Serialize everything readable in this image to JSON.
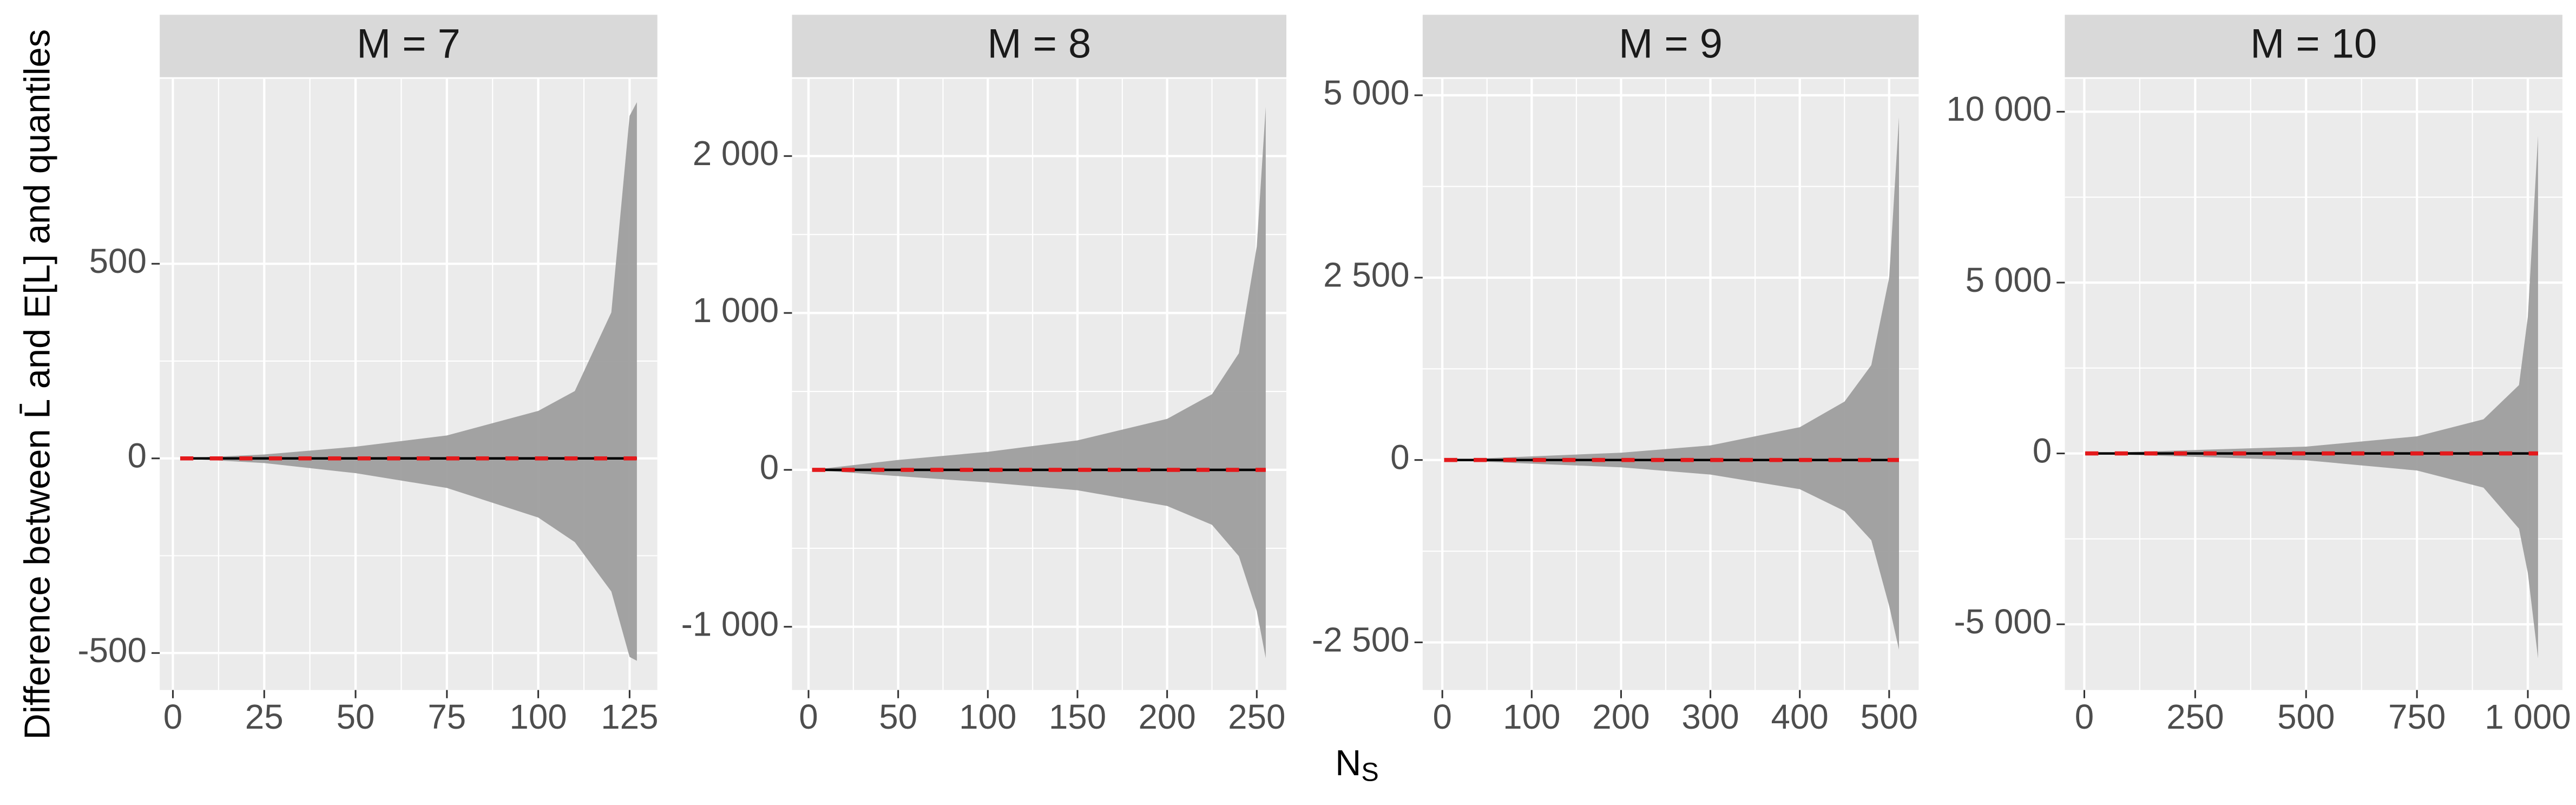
{
  "ylabel": "Difference between L̄ and E[L] and quantiles",
  "xlabel": "N",
  "xlabel_sub": "S",
  "chart_data": [
    {
      "type": "ribbon",
      "title": "M = 7",
      "xlim": [
        -3.6,
        132.6
      ],
      "xticks": [
        0,
        25,
        50,
        75,
        100,
        125
      ],
      "ylim": [
        -595,
        975
      ],
      "yticks": [
        -500,
        0,
        500
      ],
      "x": [
        2,
        25,
        50,
        75,
        100,
        110,
        120,
        125,
        127
      ],
      "upper": [
        0,
        10,
        30,
        59,
        122,
        173,
        375,
        880,
        915
      ],
      "lower": [
        0,
        -12,
        -38,
        -76,
        -152,
        -215,
        -342,
        -510,
        -520
      ],
      "line": [
        0,
        0,
        0,
        0,
        0,
        0,
        0,
        0,
        0
      ],
      "dashed": [
        0,
        0,
        0,
        0,
        0,
        0,
        0,
        0,
        0
      ],
      "ribbon_color": "#9e9e9e",
      "line_color": "#000000",
      "dashed_color": "#e41a1c",
      "grid": true
    },
    {
      "type": "ribbon",
      "title": "M = 8",
      "xlim": [
        -9.2,
        266.5
      ],
      "xticks": [
        0,
        50,
        100,
        150,
        200,
        250
      ],
      "ylim": [
        -1403,
        2492
      ],
      "yticks": [
        {
          "value": -1000,
          "label": "-1 000"
        },
        0,
        {
          "value": 1000,
          "label": "1 000"
        },
        {
          "value": 2000,
          "label": "2 000"
        }
      ],
      "x": [
        2,
        50,
        100,
        150,
        200,
        225,
        240,
        250,
        255
      ],
      "upper": [
        0,
        63,
        115,
        188,
        325,
        482,
        743,
        1424,
        2314
      ],
      "lower": [
        0,
        -40,
        -80,
        -130,
        -230,
        -350,
        -550,
        -900,
        -1200
      ],
      "line": [
        0,
        0,
        0,
        0,
        0,
        0,
        0,
        0,
        0
      ],
      "dashed": [
        0,
        0,
        0,
        0,
        0,
        0,
        0,
        0,
        0
      ],
      "ribbon_color": "#9e9e9e",
      "line_color": "#000000",
      "dashed_color": "#e41a1c",
      "grid": true
    },
    {
      "type": "ribbon",
      "title": "M = 9",
      "xlim": [
        -22,
        533
      ],
      "xticks": [
        0,
        100,
        200,
        300,
        400,
        500
      ],
      "ylim": [
        -3153,
        5225
      ],
      "yticks": [
        {
          "value": -2500,
          "label": "-2 500"
        },
        0,
        {
          "value": 2500,
          "label": "2 500"
        },
        {
          "value": 5000,
          "label": "5 000"
        }
      ],
      "x": [
        2,
        100,
        200,
        300,
        400,
        450,
        480,
        500,
        511
      ],
      "upper": [
        0,
        50,
        100,
        200,
        450,
        800,
        1300,
        2500,
        4700
      ],
      "lower": [
        0,
        -50,
        -100,
        -200,
        -400,
        -700,
        -1100,
        -2000,
        -2600
      ],
      "line": [
        0,
        0,
        0,
        0,
        0,
        0,
        0,
        0,
        0
      ],
      "dashed": [
        0,
        0,
        0,
        0,
        0,
        0,
        0,
        0,
        0
      ],
      "ribbon_color": "#9e9e9e",
      "line_color": "#000000",
      "dashed_color": "#e41a1c",
      "grid": true
    },
    {
      "type": "ribbon",
      "title": "M = 10",
      "xlim": [
        -44,
        1078
      ],
      "xticks": [
        0,
        250,
        500,
        750,
        {
          "value": 1000,
          "label": "1 000"
        }
      ],
      "ylim": [
        -6923,
        10962
      ],
      "yticks": [
        {
          "value": -5000,
          "label": "-5 000"
        },
        0,
        {
          "value": 5000,
          "label": "5 000"
        },
        {
          "value": 10000,
          "label": "10 000"
        }
      ],
      "x": [
        2,
        250,
        500,
        750,
        900,
        980,
        1000,
        1023
      ],
      "upper": [
        0,
        100,
        200,
        500,
        1000,
        2000,
        4000,
        9300
      ],
      "lower": [
        0,
        -100,
        -200,
        -500,
        -1000,
        -2200,
        -3500,
        -6000
      ],
      "line": [
        0,
        0,
        0,
        0,
        0,
        0,
        0,
        0
      ],
      "dashed": [
        0,
        0,
        0,
        0,
        0,
        0,
        0,
        0
      ],
      "ribbon_color": "#9e9e9e",
      "line_color": "#000000",
      "dashed_color": "#e41a1c",
      "grid": true
    }
  ]
}
